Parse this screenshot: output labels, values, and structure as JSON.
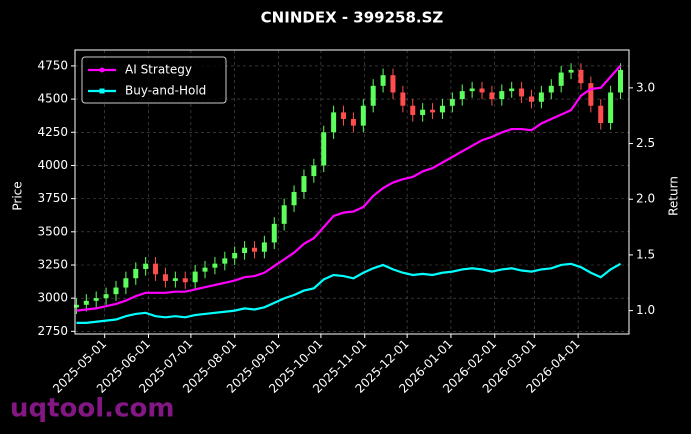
{
  "chart_data": {
    "type": "candlestick",
    "title": "CNINDEX - 399258.SZ",
    "ylabel": "Price",
    "y2label": "Return",
    "x": [
      "2025-04-11",
      "2025-04-18",
      "2025-04-25",
      "2025-05-02",
      "2025-05-09",
      "2025-05-16",
      "2025-05-23",
      "2025-05-30",
      "2025-06-06",
      "2025-06-13",
      "2025-06-20",
      "2025-06-27",
      "2025-07-04",
      "2025-07-11",
      "2025-07-18",
      "2025-07-25",
      "2025-08-01",
      "2025-08-08",
      "2025-08-15",
      "2025-08-22",
      "2025-08-29",
      "2025-09-05",
      "2025-09-12",
      "2025-09-19",
      "2025-09-26",
      "2025-10-03",
      "2025-10-10",
      "2025-10-17",
      "2025-10-24",
      "2025-10-31",
      "2025-11-07",
      "2025-11-14",
      "2025-11-21",
      "2025-11-28",
      "2025-12-05",
      "2025-12-12",
      "2025-12-19",
      "2025-12-26",
      "2026-01-02",
      "2026-01-09",
      "2026-01-16",
      "2026-01-23",
      "2026-01-30",
      "2026-02-06",
      "2026-02-13",
      "2026-02-20",
      "2026-02-27",
      "2026-03-06",
      "2026-03-13",
      "2026-03-20",
      "2026-03-27",
      "2026-04-03",
      "2026-04-10",
      "2026-04-17",
      "2026-04-24",
      "2026-05-01"
    ],
    "open": [
      2930,
      2950,
      2980,
      3000,
      3030,
      3080,
      3150,
      3220,
      3260,
      3180,
      3130,
      3150,
      3120,
      3200,
      3230,
      3260,
      3300,
      3340,
      3380,
      3350,
      3420,
      3560,
      3700,
      3800,
      3920,
      4000,
      4250,
      4400,
      4350,
      4300,
      4450,
      4600,
      4680,
      4550,
      4450,
      4380,
      4420,
      4400,
      4450,
      4500,
      4560,
      4580,
      4550,
      4500,
      4560,
      4580,
      4520,
      4480,
      4550,
      4600,
      4700,
      4720,
      4620,
      4450,
      4320,
      4550
    ],
    "high": [
      3000,
      3030,
      3050,
      3080,
      3130,
      3200,
      3270,
      3310,
      3310,
      3230,
      3200,
      3200,
      3250,
      3280,
      3310,
      3350,
      3390,
      3430,
      3430,
      3470,
      3610,
      3750,
      3850,
      3970,
      4050,
      4300,
      4450,
      4450,
      4400,
      4500,
      4650,
      4730,
      4730,
      4600,
      4500,
      4470,
      4470,
      4500,
      4550,
      4610,
      4630,
      4630,
      4600,
      4610,
      4630,
      4630,
      4570,
      4600,
      4650,
      4750,
      4770,
      4770,
      4670,
      4500,
      4600,
      4770
    ],
    "low": [
      2880,
      2900,
      2930,
      2950,
      2980,
      3030,
      3100,
      3170,
      3130,
      3080,
      3080,
      3070,
      3070,
      3150,
      3180,
      3210,
      3250,
      3290,
      3300,
      3300,
      3370,
      3510,
      3650,
      3750,
      3870,
      3950,
      4200,
      4300,
      4250,
      4250,
      4400,
      4550,
      4500,
      4400,
      4330,
      4330,
      4350,
      4350,
      4400,
      4450,
      4510,
      4500,
      4450,
      4450,
      4510,
      4470,
      4430,
      4430,
      4500,
      4550,
      4650,
      4570,
      4400,
      4270,
      4270,
      4500
    ],
    "close": [
      2950,
      2980,
      3000,
      3030,
      3080,
      3150,
      3220,
      3260,
      3180,
      3130,
      3150,
      3120,
      3200,
      3230,
      3260,
      3300,
      3340,
      3380,
      3350,
      3420,
      3560,
      3700,
      3800,
      3920,
      4000,
      4250,
      4400,
      4350,
      4300,
      4450,
      4600,
      4680,
      4550,
      4450,
      4380,
      4420,
      4400,
      4450,
      4500,
      4560,
      4580,
      4550,
      4500,
      4560,
      4580,
      4520,
      4480,
      4550,
      4600,
      4700,
      4720,
      4620,
      4450,
      4320,
      4550,
      4720
    ],
    "up_color": "#5dff5d",
    "down_color": "#ff4d4d",
    "series": [
      {
        "name": "AI Strategy",
        "color": "#ff00ff",
        "axis": "y2",
        "values": [
          1.0,
          1.01,
          1.02,
          1.04,
          1.06,
          1.09,
          1.13,
          1.16,
          1.16,
          1.16,
          1.17,
          1.17,
          1.19,
          1.21,
          1.23,
          1.25,
          1.27,
          1.3,
          1.31,
          1.34,
          1.4,
          1.46,
          1.52,
          1.6,
          1.65,
          1.75,
          1.85,
          1.88,
          1.89,
          1.93,
          2.03,
          2.1,
          2.15,
          2.18,
          2.2,
          2.25,
          2.28,
          2.33,
          2.38,
          2.43,
          2.48,
          2.53,
          2.56,
          2.6,
          2.63,
          2.63,
          2.62,
          2.68,
          2.72,
          2.76,
          2.8,
          2.93,
          2.99,
          3.0,
          3.1,
          3.2
        ]
      },
      {
        "name": "Buy-and-Hold",
        "color": "#00ffff",
        "axis": "y2",
        "values": [
          0.89,
          0.89,
          0.9,
          0.91,
          0.92,
          0.95,
          0.97,
          0.98,
          0.95,
          0.94,
          0.95,
          0.94,
          0.96,
          0.97,
          0.98,
          0.99,
          1.0,
          1.02,
          1.01,
          1.03,
          1.07,
          1.11,
          1.14,
          1.18,
          1.2,
          1.28,
          1.32,
          1.31,
          1.29,
          1.34,
          1.38,
          1.41,
          1.37,
          1.34,
          1.32,
          1.33,
          1.32,
          1.34,
          1.35,
          1.37,
          1.38,
          1.37,
          1.35,
          1.37,
          1.38,
          1.36,
          1.35,
          1.37,
          1.38,
          1.41,
          1.42,
          1.39,
          1.34,
          1.3,
          1.37,
          1.42
        ]
      }
    ],
    "xlim": [
      "2025-04-10",
      "2026-05-07"
    ],
    "xticks": [
      "2025-05-01",
      "2025-06-01",
      "2025-07-01",
      "2025-08-01",
      "2025-09-01",
      "2025-10-01",
      "2025-11-01",
      "2025-12-01",
      "2026-01-01",
      "2026-02-01",
      "2026-03-01",
      "2026-04-01"
    ],
    "ylim": [
      2730,
      4870
    ],
    "yticks": [
      2750,
      3000,
      3250,
      3500,
      3750,
      4000,
      4250,
      4500,
      4750
    ],
    "y2lim": [
      0.79,
      3.34
    ],
    "y2ticks": [
      {
        "value": 1,
        "label": "1.0"
      },
      {
        "value": 1.5,
        "label": "1.5"
      },
      {
        "value": 2,
        "label": "2.0"
      },
      {
        "value": 2.5,
        "label": "2.5"
      },
      {
        "value": 3,
        "label": "3.0"
      }
    ],
    "grid": true,
    "legend": "upper left"
  },
  "watermark": "uqtool.com"
}
